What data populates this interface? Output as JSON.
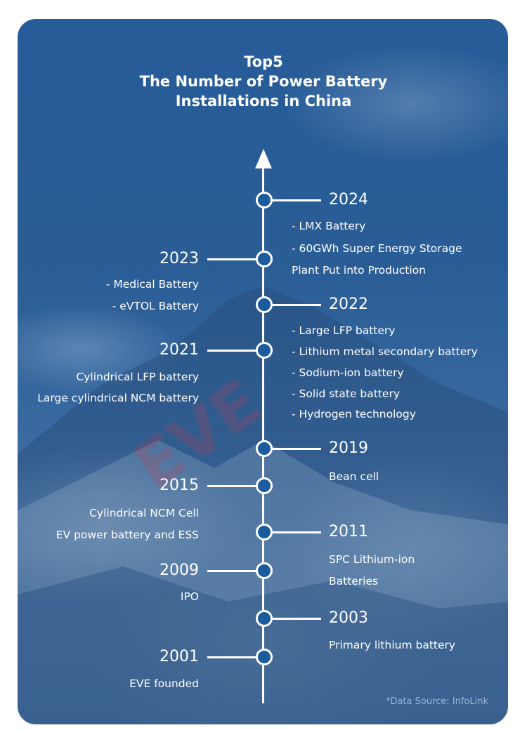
{
  "title": {
    "line1": "Top5",
    "line2": "The Number of Power Battery",
    "line3": "Installations in China"
  },
  "watermark": "EVE",
  "colors": {
    "background": "#2a5d96",
    "node_fill": "#1b5c9e",
    "line": "#ffffff",
    "watermark": "#c83c50"
  },
  "timeline": [
    {
      "year": "2024",
      "side": "right",
      "items": [
        "- LMX Battery",
        "- 60GWh Super Energy Storage",
        "Plant Put into Production"
      ]
    },
    {
      "year": "2023",
      "side": "left",
      "items": [
        "- Medical Battery",
        "- eVTOL Battery"
      ]
    },
    {
      "year": "2022",
      "side": "right",
      "items": [
        "- Large LFP battery",
        "- Lithium metal secondary battery",
        "- Sodium-ion battery",
        "- Solid state battery",
        "- Hydrogen technology"
      ]
    },
    {
      "year": "2021",
      "side": "left",
      "items": [
        "Cylindrical LFP battery",
        "Large cylindrical NCM battery"
      ]
    },
    {
      "year": "2019",
      "side": "right",
      "items": [
        "Bean cell"
      ]
    },
    {
      "year": "2015",
      "side": "left",
      "items": [
        "Cylindrical NCM Cell",
        "EV power battery and ESS"
      ]
    },
    {
      "year": "2011",
      "side": "right",
      "items": [
        "SPC Lithium-ion",
        "Batteries"
      ]
    },
    {
      "year": "2009",
      "side": "left",
      "items": [
        "IPO"
      ]
    },
    {
      "year": "2003",
      "side": "right",
      "items": [
        "Primary lithium battery"
      ]
    },
    {
      "year": "2001",
      "side": "left",
      "items": [
        "EVE founded"
      ]
    }
  ],
  "source": "*Data Source:  InfoLink"
}
